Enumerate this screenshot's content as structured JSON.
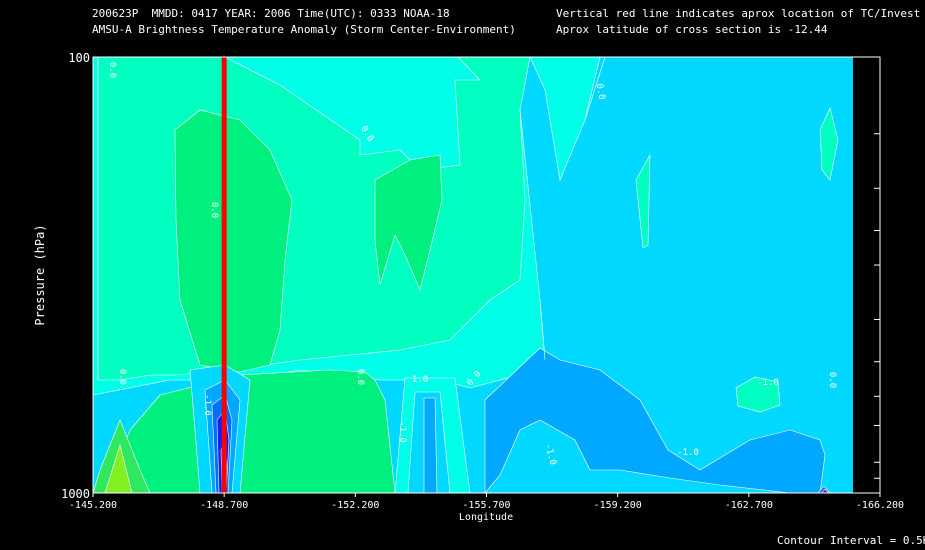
{
  "header": {
    "line1_left": "200623P  MMDD: 0417 YEAR: 2006 Time(UTC): 0333 NOAA-18",
    "line2_left": "AMSU-A Brightness Temperature Anomaly (Storm Center-Environment)",
    "line1_right": "Vertical red line indicates aprox location of TC/Invest",
    "line2_right": "Aprox latitude of cross section is -12.44"
  },
  "footer": {
    "contour_interval": "Contour Interval = 0.5K"
  },
  "colors": {
    "background": "#000000",
    "storm_line": "#ff0000",
    "levels": [
      "#6b00d6",
      "#1020ff",
      "#0070ff",
      "#00a8ff",
      "#00d8ff",
      "#00ffe8",
      "#00ffc0",
      "#00f080",
      "#30e860",
      "#80f020"
    ]
  },
  "chart_data": {
    "type": "contour",
    "title": "AMSU-A Brightness Temperature Anomaly (Storm Center-Environment)",
    "xlabel": "Longitude",
    "ylabel": "Pressure (hPa)",
    "x_ticks": [
      "-145.200",
      "-148.700",
      "-152.200",
      "-155.700",
      "-159.200",
      "-162.700",
      "-166.200"
    ],
    "y_ticks": [
      "100",
      "1000"
    ],
    "xlim": [
      -145.2,
      -166.2
    ],
    "ylim": [
      1000,
      100
    ],
    "y_scale": "log",
    "storm_center_longitude": -148.7,
    "latitude": -12.44,
    "contour_interval_K": 0.5,
    "contour_labels": [
      "0.0",
      "0.0",
      "0.0",
      "0.0",
      "0.0",
      "0.0",
      "0.0",
      "1.0",
      "-1.0",
      "-1.0",
      "-1.0",
      "-1.0",
      "-1.0",
      "0.0"
    ]
  }
}
